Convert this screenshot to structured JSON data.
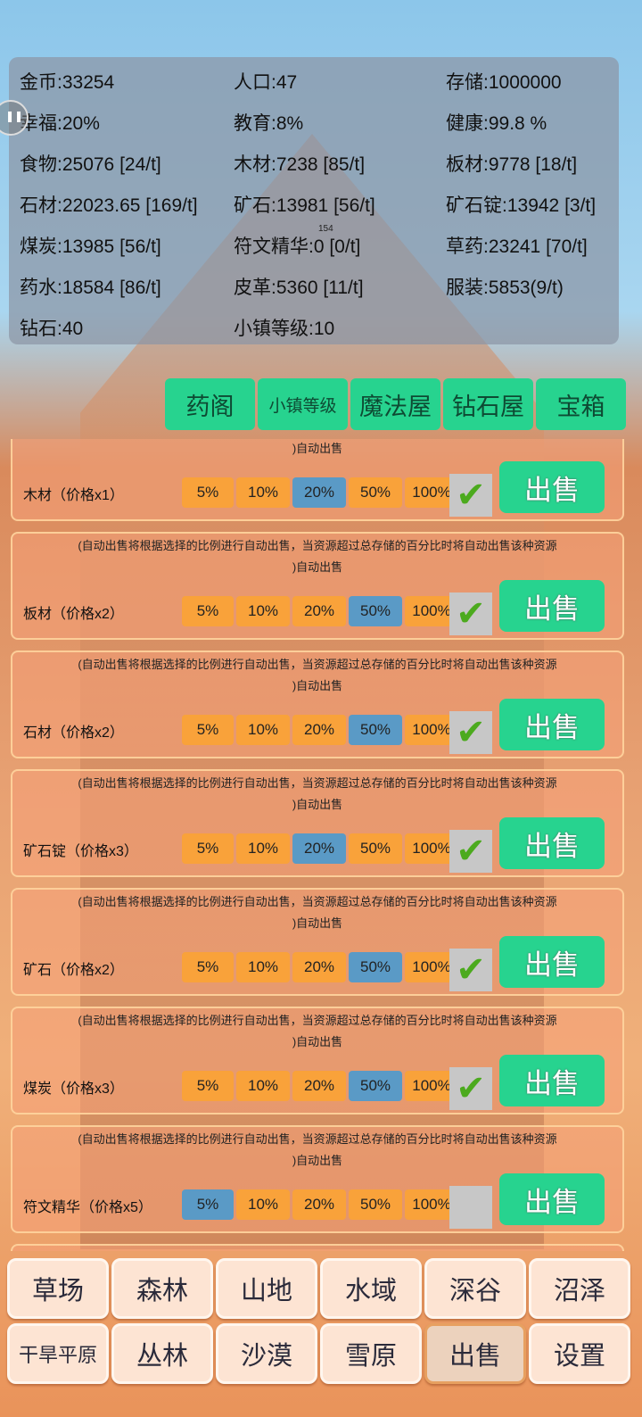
{
  "stats": [
    "金币:33254",
    "人口:47",
    "存储:1000000",
    "幸福:20%",
    "教育:8%",
    "健康:99.8 %",
    "食物:25076 [24/t]",
    "木材:7238 [85/t]",
    "板材:9778 [18/t]",
    "石材:22023.65 [169/t]",
    "矿石:13981 [56/t]",
    "矿石锭:13942 [3/t]",
    "煤炭:13985 [56/t]",
    "符文精华:0 [0/t]",
    "草药:23241 [70/t]",
    "药水:18584 [86/t]",
    "皮革:5360 [11/t]",
    "服装:5853(9/t)",
    "钻石:40",
    "小镇等级:10"
  ],
  "tick_label": "154",
  "top_buttons": [
    "药阁",
    "小镇等级",
    "魔法屋",
    "钻石屋",
    "宝箱"
  ],
  "desc_line1": "(自动出售将根据选择的比例进行自动出售，当资源超过总存储的百分比时将自动出售该种资源",
  "desc_line2": ")自动出售",
  "percent_options": [
    "5%",
    "10%",
    "20%",
    "50%",
    "100%"
  ],
  "sell_label": "出售",
  "resources": [
    {
      "name": "木材（价格x1）",
      "selected": "20%",
      "auto": true
    },
    {
      "name": "板材（价格x2）",
      "selected": "50%",
      "auto": true
    },
    {
      "name": "石材（价格x2）",
      "selected": "50%",
      "auto": true
    },
    {
      "name": "矿石锭（价格x3）",
      "selected": "20%",
      "auto": true
    },
    {
      "name": "矿石（价格x2）",
      "selected": "50%",
      "auto": true
    },
    {
      "name": "煤炭（价格x3）",
      "selected": "50%",
      "auto": true
    },
    {
      "name": "符文精华（价格x5）",
      "selected": "5%",
      "auto": false
    }
  ],
  "colors": {
    "accent": "#27d38f",
    "option": "#f9a23a",
    "option_selected": "#5a9ac6",
    "check": "#4caa1e"
  },
  "nav_row1": [
    "草场",
    "森林",
    "山地",
    "水域",
    "深谷",
    "沼泽"
  ],
  "nav_row2": [
    "干旱平原",
    "丛林",
    "沙漠",
    "雪原",
    "出售",
    "设置"
  ],
  "active_nav": "出售"
}
